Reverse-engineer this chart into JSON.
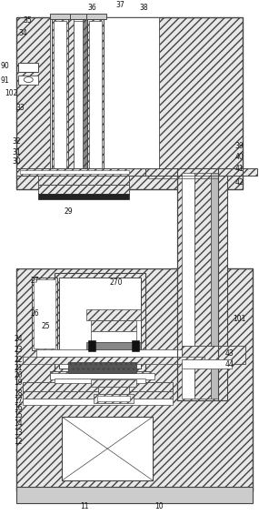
{
  "bg_color": "#ffffff",
  "figsize": [
    2.85,
    5.66
  ],
  "dpi": 100,
  "lw_main": 0.8,
  "lw_thin": 0.5,
  "ec": "#444444",
  "hatch_fc": "#e8e8e8",
  "white": "#ffffff",
  "black": "#111111",
  "gray": "#aaaaaa",
  "darkgray": "#666666"
}
